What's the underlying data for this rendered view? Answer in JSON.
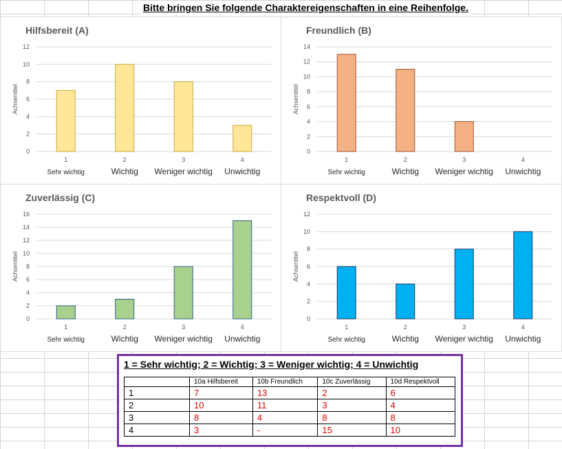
{
  "header": {
    "title": "Bitte bringen Sie folgende Charaktereigenschaften in eine Reihenfolge."
  },
  "chart_data": [
    {
      "type": "bar",
      "title": "Hilfsbereit (A)",
      "ylabel": "Achsentitel",
      "categories": [
        "1",
        "2",
        "3",
        "4"
      ],
      "category_labels": [
        "Sehr wichtig",
        "Wichtig",
        "Weniger wichtig",
        "Unwichtig"
      ],
      "values": [
        7,
        10,
        8,
        3
      ],
      "ylim": [
        0,
        12
      ],
      "ystep": 2,
      "color": "#ffe699",
      "stroke": "#c9a93a",
      "grid": true
    },
    {
      "type": "bar",
      "title": "Freundlich (B)",
      "ylabel": "Achsentitel",
      "categories": [
        "1",
        "2",
        "3",
        "4"
      ],
      "category_labels": [
        "Sehr wichtig",
        "Wichtig",
        "Weniger wichtig",
        "Unwichtig"
      ],
      "values": [
        13,
        11,
        4,
        null
      ],
      "ylim": [
        0,
        14
      ],
      "ystep": 2,
      "color": "#f4b183",
      "stroke": "#a0522d",
      "grid": true
    },
    {
      "type": "bar",
      "title": "Zuverlässig (C)",
      "ylabel": "Achsentitel",
      "categories": [
        "1",
        "2",
        "3",
        "4"
      ],
      "category_labels": [
        "Sehr wichtig",
        "Wichtig",
        "Weniger wichtig",
        "Unwichtig"
      ],
      "values": [
        2,
        3,
        8,
        15
      ],
      "ylim": [
        0,
        16
      ],
      "ystep": 2,
      "color": "#a9d18e",
      "stroke": "#2f5f80",
      "grid": true
    },
    {
      "type": "bar",
      "title": "Respektvoll (D)",
      "ylabel": "Achsentitel",
      "categories": [
        "1",
        "2",
        "3",
        "4"
      ],
      "category_labels": [
        "Sehr wichtig",
        "Wichtig",
        "Weniger wichtig",
        "Unwichtig"
      ],
      "values": [
        6,
        4,
        8,
        10
      ],
      "ylim": [
        0,
        12
      ],
      "ystep": 2,
      "color": "#00b0f0",
      "stroke": "#1f3864",
      "grid": true
    }
  ],
  "legend": {
    "text": "1 = Sehr wichtig; 2 = Wichtig; 3 = Weniger wichtig; 4 = Unwichtig"
  },
  "table": {
    "headers": [
      "",
      "10a Hilfsbereit",
      "10b Freundlich",
      "10c Zuverlässig",
      "10d Respektvoll"
    ],
    "rows": [
      [
        "1",
        "7",
        "13",
        "2",
        "6"
      ],
      [
        "2",
        "10",
        "11",
        "3",
        "4"
      ],
      [
        "3",
        "8",
        "4",
        "8",
        "8"
      ],
      [
        "4",
        "3",
        "-",
        "15",
        "10"
      ]
    ]
  },
  "colors": {
    "legend_border": "#7030a0",
    "table_values": "#e00000"
  }
}
